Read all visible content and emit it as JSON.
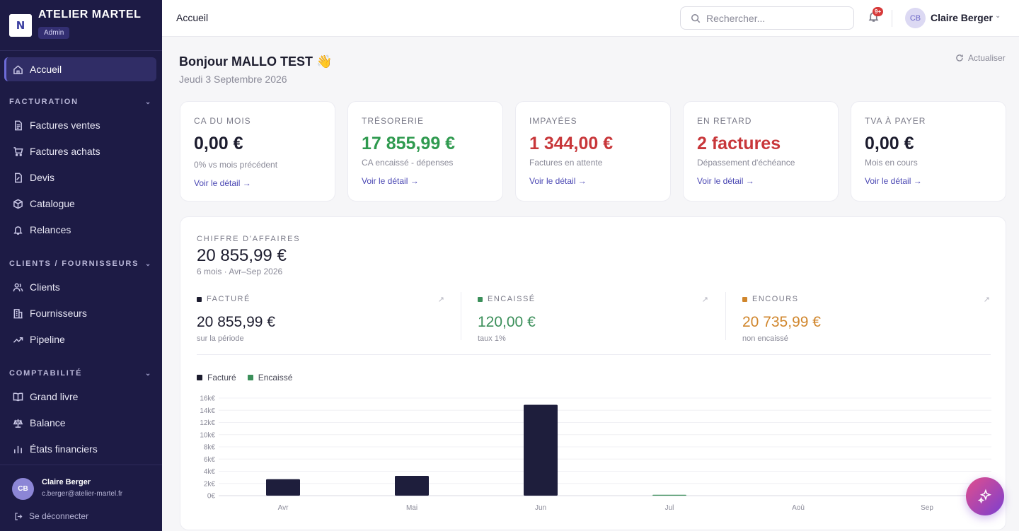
{
  "brand": {
    "name": "ATELIER MARTEL",
    "logo_letter": "N",
    "role": "Admin"
  },
  "sidebar": {
    "home": "Accueil",
    "sections": [
      {
        "title": "FACTURATION",
        "items": [
          "Factures ventes",
          "Factures achats",
          "Devis",
          "Catalogue",
          "Relances"
        ]
      },
      {
        "title": "CLIENTS / FOURNISSEURS",
        "items": [
          "Clients",
          "Fournisseurs",
          "Pipeline"
        ]
      },
      {
        "title": "COMPTABILITÉ",
        "items": [
          "Grand livre",
          "Balance",
          "États financiers"
        ]
      }
    ],
    "user": {
      "initials": "CB",
      "name": "Claire Berger",
      "email": "c.berger@atelier-martel.fr"
    },
    "logout": "Se déconnecter"
  },
  "topbar": {
    "breadcrumb": "Accueil",
    "search_placeholder": "Rechercher...",
    "notif_badge": "9+",
    "user_initials": "CB",
    "user_name": "Claire Berger"
  },
  "header": {
    "greeting": "Bonjour MALLO TEST 👋",
    "date": "Jeudi 3 Septembre 2026",
    "refresh": "Actualiser"
  },
  "kpis": [
    {
      "label": "CA DU MOIS",
      "value": "0,00 €",
      "sub": "0% vs mois précédent",
      "link": "Voir le détail →",
      "color": "#1c1c2e"
    },
    {
      "label": "TRÉSORERIE",
      "value": "17 855,99 €",
      "sub": "CA encaissé - dépenses",
      "link": "Voir le détail →",
      "color": "#2f9a4f"
    },
    {
      "label": "IMPAYÉES",
      "value": "1 344,00 €",
      "sub": "Factures en attente",
      "link": "Voir le détail →",
      "color": "#c8373a"
    },
    {
      "label": "EN RETARD",
      "value": "2 factures",
      "sub": "Dépassement d'échéance",
      "link": "Voir le détail →",
      "color": "#c8373a"
    },
    {
      "label": "TVA À PAYER",
      "value": "0,00 €",
      "sub": "Mois en cours",
      "link": "Voir le détail →",
      "color": "#1c1c2e"
    }
  ],
  "revenue": {
    "label": "CHIFFRE D'AFFAIRES",
    "total": "20 855,99 €",
    "period": "6 mois · Avr–Sep 2026",
    "metrics": [
      {
        "label": "FACTURÉ",
        "value": "20 855,99 €",
        "sub": "sur la période",
        "color": "#1c1c2e",
        "dot": "#1c1c2e"
      },
      {
        "label": "ENCAISSÉ",
        "value": "120,00 €",
        "sub": "taux 1%",
        "color": "#3b8f5a",
        "dot": "#3b8f5a"
      },
      {
        "label": "ENCOURS",
        "value": "20 735,99 €",
        "sub": "non encaissé",
        "color": "#d0862c",
        "dot": "#d0862c"
      }
    ]
  },
  "chart_data": {
    "type": "bar",
    "categories": [
      "Avr",
      "Mai",
      "Jun",
      "Jul",
      "Aoû",
      "Sep"
    ],
    "series": [
      {
        "name": "Facturé",
        "color": "#1e1e3c",
        "values": [
          2700,
          3250,
          14900,
          0,
          0,
          0
        ]
      },
      {
        "name": "Encaissé",
        "color": "#3b8f5a",
        "values": [
          0,
          0,
          0,
          120,
          0,
          0
        ]
      }
    ],
    "ylim": [
      0,
      16000
    ],
    "yticks": [
      "0€",
      "2k€",
      "4k€",
      "6k€",
      "8k€",
      "10k€",
      "12k€",
      "14k€",
      "16k€"
    ],
    "grid": true,
    "legend": "top-left"
  }
}
